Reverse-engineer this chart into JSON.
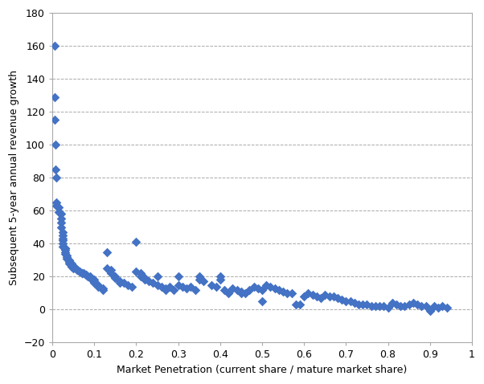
{
  "x": [
    0.005,
    0.005,
    0.005,
    0.007,
    0.008,
    0.01,
    0.01,
    0.01,
    0.015,
    0.015,
    0.02,
    0.02,
    0.02,
    0.02,
    0.025,
    0.025,
    0.025,
    0.025,
    0.025,
    0.025,
    0.03,
    0.03,
    0.03,
    0.03,
    0.03,
    0.035,
    0.035,
    0.035,
    0.04,
    0.04,
    0.04,
    0.04,
    0.045,
    0.045,
    0.045,
    0.05,
    0.05,
    0.05,
    0.055,
    0.055,
    0.06,
    0.06,
    0.065,
    0.065,
    0.07,
    0.07,
    0.075,
    0.08,
    0.08,
    0.085,
    0.09,
    0.09,
    0.1,
    0.1,
    0.1,
    0.11,
    0.11,
    0.12,
    0.12,
    0.13,
    0.13,
    0.14,
    0.14,
    0.15,
    0.15,
    0.16,
    0.16,
    0.17,
    0.18,
    0.19,
    0.2,
    0.2,
    0.21,
    0.21,
    0.22,
    0.22,
    0.23,
    0.24,
    0.25,
    0.25,
    0.26,
    0.27,
    0.27,
    0.28,
    0.29,
    0.3,
    0.3,
    0.31,
    0.32,
    0.33,
    0.34,
    0.35,
    0.35,
    0.36,
    0.38,
    0.39,
    0.4,
    0.4,
    0.41,
    0.42,
    0.43,
    0.44,
    0.45,
    0.45,
    0.46,
    0.47,
    0.48,
    0.49,
    0.5,
    0.5,
    0.51,
    0.52,
    0.53,
    0.54,
    0.55,
    0.56,
    0.57,
    0.58,
    0.59,
    0.6,
    0.61,
    0.62,
    0.63,
    0.64,
    0.65,
    0.66,
    0.67,
    0.68,
    0.69,
    0.7,
    0.71,
    0.72,
    0.73,
    0.74,
    0.75,
    0.76,
    0.77,
    0.78,
    0.79,
    0.8,
    0.81,
    0.82,
    0.83,
    0.84,
    0.85,
    0.86,
    0.87,
    0.88,
    0.89,
    0.9,
    0.91,
    0.92,
    0.93,
    0.94
  ],
  "y": [
    160,
    129,
    115,
    100,
    85,
    80,
    65,
    63,
    62,
    59,
    58,
    55,
    53,
    50,
    47,
    45,
    43,
    42,
    40,
    38,
    37,
    37,
    36,
    35,
    34,
    33,
    32,
    31,
    30,
    30,
    29,
    28,
    28,
    27,
    26,
    26,
    26,
    25,
    25,
    25,
    24,
    24,
    23,
    23,
    22,
    22,
    22,
    21,
    21,
    20,
    20,
    19,
    18,
    17,
    16,
    15,
    14,
    13,
    12,
    35,
    25,
    24,
    22,
    20,
    19,
    17,
    16,
    16,
    15,
    14,
    41,
    23,
    22,
    20,
    19,
    18,
    17,
    16,
    20,
    15,
    14,
    13,
    12,
    14,
    12,
    20,
    15,
    14,
    13,
    14,
    12,
    20,
    18,
    17,
    15,
    14,
    20,
    18,
    12,
    10,
    13,
    12,
    11,
    10,
    10,
    12,
    14,
    13,
    12,
    5,
    15,
    14,
    13,
    12,
    11,
    10,
    10,
    3,
    3,
    8,
    10,
    9,
    8,
    7,
    9,
    8,
    8,
    7,
    6,
    5,
    5,
    4,
    3,
    3,
    3,
    2,
    2,
    2,
    2,
    1,
    4,
    3,
    2,
    2,
    3,
    4,
    3,
    2,
    2,
    -1,
    2,
    1,
    2,
    1
  ],
  "marker_color": "#4472C4",
  "marker_size": 35,
  "xlabel": "Market Penetration (current share / mature market share)",
  "ylabel": "Subsequent 5-year annual revenue growth",
  "xlim": [
    0,
    1
  ],
  "ylim": [
    -20,
    180
  ],
  "xticks": [
    0,
    0.1,
    0.2,
    0.3,
    0.4,
    0.5,
    0.6,
    0.7,
    0.8,
    0.9,
    1.0
  ],
  "yticks": [
    -20,
    0,
    20,
    40,
    60,
    80,
    100,
    120,
    140,
    160,
    180
  ],
  "grid_color": "#AAAAAA",
  "bg_color": "#FFFFFF",
  "plot_bg_color": "#FFFFFF",
  "spine_color": "#AAAAAA",
  "xlabel_fontsize": 9,
  "ylabel_fontsize": 9,
  "tick_fontsize": 9
}
